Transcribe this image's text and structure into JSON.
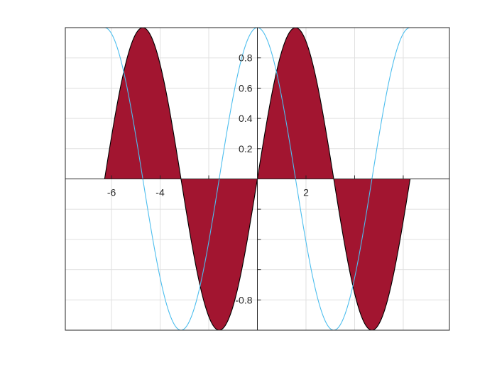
{
  "chart_data": {
    "type": "area",
    "title": "",
    "xlabel": "",
    "ylabel": "",
    "xlim": [
      -7.9,
      7.9
    ],
    "ylim": [
      -1,
      1
    ],
    "grid": true,
    "x_ticks": [
      -6,
      -4,
      2
    ],
    "y_ticks": [
      0.2,
      0.4,
      0.6,
      0.8,
      -0.8
    ],
    "x_tick_labels": [
      "-6",
      "-4",
      "2"
    ],
    "y_tick_labels": [
      "0.2",
      "0.4",
      "0.6",
      "0.8",
      "-0.8"
    ],
    "series": [
      {
        "kind": "filled_area",
        "function": "sin(x)",
        "x_range": [
          -6.2832,
          6.2832
        ],
        "fill_color": "#a21530",
        "edge_color": "#000000"
      },
      {
        "kind": "line",
        "function": "cos(x)",
        "x_range": [
          -6.2832,
          6.2832
        ],
        "color": "#4dbeee"
      }
    ]
  }
}
